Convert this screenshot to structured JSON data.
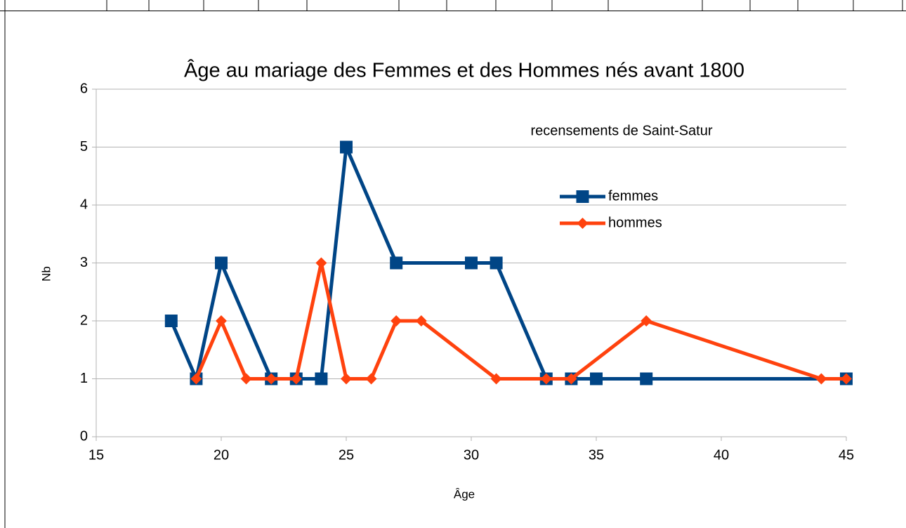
{
  "chart_data": {
    "type": "line",
    "title": "Âge au mariage des Femmes et des Hommes nés avant  1800",
    "annotation": "recensements de Saint-Satur",
    "x_label": "Âge",
    "y_label": "Nb",
    "xlim": [
      15,
      45
    ],
    "xticks": [
      15,
      20,
      25,
      30,
      35,
      40,
      45
    ],
    "ylim": [
      0,
      6
    ],
    "yticks": [
      0,
      1,
      2,
      3,
      4,
      5,
      6
    ],
    "grid": true,
    "series": [
      {
        "name": "femmes",
        "color": "#004586",
        "marker": "square",
        "x": [
          18,
          19,
          20,
          22,
          23,
          24,
          25,
          27,
          30,
          31,
          33,
          34,
          35,
          37,
          45
        ],
        "values": [
          2,
          1,
          3,
          1,
          1,
          1,
          5,
          3,
          3,
          3,
          1,
          1,
          1,
          1,
          1
        ]
      },
      {
        "name": "hommes",
        "color": "#ff420e",
        "marker": "diamond",
        "x": [
          19,
          20,
          21,
          22,
          23,
          24,
          25,
          26,
          27,
          28,
          31,
          33,
          34,
          37,
          44,
          45
        ],
        "values": [
          1,
          2,
          1,
          1,
          1,
          3,
          1,
          1,
          2,
          2,
          1,
          1,
          1,
          2,
          1,
          1
        ]
      }
    ]
  }
}
